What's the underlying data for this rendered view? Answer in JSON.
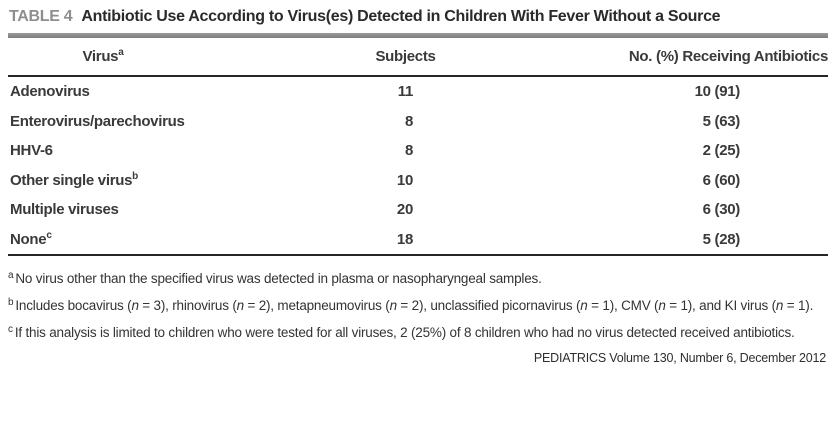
{
  "title": {
    "label": "TABLE 4",
    "text": "Antibiotic Use According to Virus(es) Detected in Children With Fever Without a Source"
  },
  "table": {
    "columns": [
      {
        "label": "Virus",
        "sup": "a"
      },
      {
        "label": "Subjects",
        "sup": ""
      },
      {
        "label": "No. (%) Receiving Antibiotics",
        "sup": ""
      }
    ],
    "rows": [
      {
        "virus": "Adenovirus",
        "sup": "",
        "subjects": "11",
        "antibiotics": "10 (91)"
      },
      {
        "virus": "Enterovirus/parechovirus",
        "sup": "",
        "subjects": "8",
        "antibiotics": "5 (63)"
      },
      {
        "virus": "HHV-6",
        "sup": "",
        "subjects": "8",
        "antibiotics": "2 (25)"
      },
      {
        "virus": "Other single virus",
        "sup": "b",
        "subjects": "10",
        "antibiotics": "6 (60)"
      },
      {
        "virus": "Multiple viruses",
        "sup": "",
        "subjects": "20",
        "antibiotics": "6 (30)"
      },
      {
        "virus": "None",
        "sup": "c",
        "subjects": "18",
        "antibiotics": "5 (28)"
      }
    ]
  },
  "footnotes": [
    {
      "marker": "a",
      "text": "No virus other than the specified virus was detected in plasma or nasopharyngeal samples."
    },
    {
      "marker": "b",
      "text": "Includes bocavirus (n = 3), rhinovirus (n = 2), metapneumovirus (n = 2), unclassified picornavirus (n = 1), CMV (n = 1), and KI virus (n = 1)."
    },
    {
      "marker": "c",
      "text": "If this analysis is limited to children who were tested for all viruses, 2 (25%) of 8 children who had no virus detected received antibiotics."
    }
  ],
  "footer": {
    "text": "PEDIATRICS Volume 130, Number 6, December 2012"
  },
  "colors": {
    "title_label_gray": "#8e8e8e",
    "thick_rule_gray": "#8a8a8a",
    "thin_rule_dark": "#262626",
    "text": "#333333"
  }
}
